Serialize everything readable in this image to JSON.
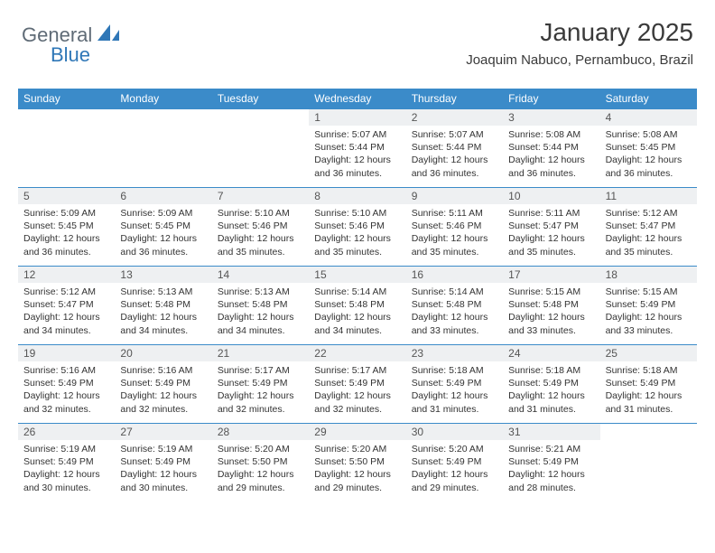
{
  "brand": {
    "part1": "General",
    "part2": "Blue"
  },
  "header": {
    "month_title": "January 2025",
    "location": "Joaquim Nabuco, Pernambuco, Brazil"
  },
  "colors": {
    "header_bg": "#3b8bc9",
    "header_text": "#ffffff",
    "daynum_bg": "#eef0f2",
    "row_sep": "#3b8bc9",
    "logo_gray": "#5f6b76",
    "logo_blue": "#2f77b7",
    "body_text": "#333333"
  },
  "day_names": [
    "Sunday",
    "Monday",
    "Tuesday",
    "Wednesday",
    "Thursday",
    "Friday",
    "Saturday"
  ],
  "weeks": [
    [
      {
        "empty": true
      },
      {
        "empty": true
      },
      {
        "empty": true
      },
      {
        "day": "1",
        "sunrise": "Sunrise: 5:07 AM",
        "sunset": "Sunset: 5:44 PM",
        "daylight1": "Daylight: 12 hours",
        "daylight2": "and 36 minutes."
      },
      {
        "day": "2",
        "sunrise": "Sunrise: 5:07 AM",
        "sunset": "Sunset: 5:44 PM",
        "daylight1": "Daylight: 12 hours",
        "daylight2": "and 36 minutes."
      },
      {
        "day": "3",
        "sunrise": "Sunrise: 5:08 AM",
        "sunset": "Sunset: 5:44 PM",
        "daylight1": "Daylight: 12 hours",
        "daylight2": "and 36 minutes."
      },
      {
        "day": "4",
        "sunrise": "Sunrise: 5:08 AM",
        "sunset": "Sunset: 5:45 PM",
        "daylight1": "Daylight: 12 hours",
        "daylight2": "and 36 minutes."
      }
    ],
    [
      {
        "day": "5",
        "sunrise": "Sunrise: 5:09 AM",
        "sunset": "Sunset: 5:45 PM",
        "daylight1": "Daylight: 12 hours",
        "daylight2": "and 36 minutes."
      },
      {
        "day": "6",
        "sunrise": "Sunrise: 5:09 AM",
        "sunset": "Sunset: 5:45 PM",
        "daylight1": "Daylight: 12 hours",
        "daylight2": "and 36 minutes."
      },
      {
        "day": "7",
        "sunrise": "Sunrise: 5:10 AM",
        "sunset": "Sunset: 5:46 PM",
        "daylight1": "Daylight: 12 hours",
        "daylight2": "and 35 minutes."
      },
      {
        "day": "8",
        "sunrise": "Sunrise: 5:10 AM",
        "sunset": "Sunset: 5:46 PM",
        "daylight1": "Daylight: 12 hours",
        "daylight2": "and 35 minutes."
      },
      {
        "day": "9",
        "sunrise": "Sunrise: 5:11 AM",
        "sunset": "Sunset: 5:46 PM",
        "daylight1": "Daylight: 12 hours",
        "daylight2": "and 35 minutes."
      },
      {
        "day": "10",
        "sunrise": "Sunrise: 5:11 AM",
        "sunset": "Sunset: 5:47 PM",
        "daylight1": "Daylight: 12 hours",
        "daylight2": "and 35 minutes."
      },
      {
        "day": "11",
        "sunrise": "Sunrise: 5:12 AM",
        "sunset": "Sunset: 5:47 PM",
        "daylight1": "Daylight: 12 hours",
        "daylight2": "and 35 minutes."
      }
    ],
    [
      {
        "day": "12",
        "sunrise": "Sunrise: 5:12 AM",
        "sunset": "Sunset: 5:47 PM",
        "daylight1": "Daylight: 12 hours",
        "daylight2": "and 34 minutes."
      },
      {
        "day": "13",
        "sunrise": "Sunrise: 5:13 AM",
        "sunset": "Sunset: 5:48 PM",
        "daylight1": "Daylight: 12 hours",
        "daylight2": "and 34 minutes."
      },
      {
        "day": "14",
        "sunrise": "Sunrise: 5:13 AM",
        "sunset": "Sunset: 5:48 PM",
        "daylight1": "Daylight: 12 hours",
        "daylight2": "and 34 minutes."
      },
      {
        "day": "15",
        "sunrise": "Sunrise: 5:14 AM",
        "sunset": "Sunset: 5:48 PM",
        "daylight1": "Daylight: 12 hours",
        "daylight2": "and 34 minutes."
      },
      {
        "day": "16",
        "sunrise": "Sunrise: 5:14 AM",
        "sunset": "Sunset: 5:48 PM",
        "daylight1": "Daylight: 12 hours",
        "daylight2": "and 33 minutes."
      },
      {
        "day": "17",
        "sunrise": "Sunrise: 5:15 AM",
        "sunset": "Sunset: 5:48 PM",
        "daylight1": "Daylight: 12 hours",
        "daylight2": "and 33 minutes."
      },
      {
        "day": "18",
        "sunrise": "Sunrise: 5:15 AM",
        "sunset": "Sunset: 5:49 PM",
        "daylight1": "Daylight: 12 hours",
        "daylight2": "and 33 minutes."
      }
    ],
    [
      {
        "day": "19",
        "sunrise": "Sunrise: 5:16 AM",
        "sunset": "Sunset: 5:49 PM",
        "daylight1": "Daylight: 12 hours",
        "daylight2": "and 32 minutes."
      },
      {
        "day": "20",
        "sunrise": "Sunrise: 5:16 AM",
        "sunset": "Sunset: 5:49 PM",
        "daylight1": "Daylight: 12 hours",
        "daylight2": "and 32 minutes."
      },
      {
        "day": "21",
        "sunrise": "Sunrise: 5:17 AM",
        "sunset": "Sunset: 5:49 PM",
        "daylight1": "Daylight: 12 hours",
        "daylight2": "and 32 minutes."
      },
      {
        "day": "22",
        "sunrise": "Sunrise: 5:17 AM",
        "sunset": "Sunset: 5:49 PM",
        "daylight1": "Daylight: 12 hours",
        "daylight2": "and 32 minutes."
      },
      {
        "day": "23",
        "sunrise": "Sunrise: 5:18 AM",
        "sunset": "Sunset: 5:49 PM",
        "daylight1": "Daylight: 12 hours",
        "daylight2": "and 31 minutes."
      },
      {
        "day": "24",
        "sunrise": "Sunrise: 5:18 AM",
        "sunset": "Sunset: 5:49 PM",
        "daylight1": "Daylight: 12 hours",
        "daylight2": "and 31 minutes."
      },
      {
        "day": "25",
        "sunrise": "Sunrise: 5:18 AM",
        "sunset": "Sunset: 5:49 PM",
        "daylight1": "Daylight: 12 hours",
        "daylight2": "and 31 minutes."
      }
    ],
    [
      {
        "day": "26",
        "sunrise": "Sunrise: 5:19 AM",
        "sunset": "Sunset: 5:49 PM",
        "daylight1": "Daylight: 12 hours",
        "daylight2": "and 30 minutes."
      },
      {
        "day": "27",
        "sunrise": "Sunrise: 5:19 AM",
        "sunset": "Sunset: 5:49 PM",
        "daylight1": "Daylight: 12 hours",
        "daylight2": "and 30 minutes."
      },
      {
        "day": "28",
        "sunrise": "Sunrise: 5:20 AM",
        "sunset": "Sunset: 5:50 PM",
        "daylight1": "Daylight: 12 hours",
        "daylight2": "and 29 minutes."
      },
      {
        "day": "29",
        "sunrise": "Sunrise: 5:20 AM",
        "sunset": "Sunset: 5:50 PM",
        "daylight1": "Daylight: 12 hours",
        "daylight2": "and 29 minutes."
      },
      {
        "day": "30",
        "sunrise": "Sunrise: 5:20 AM",
        "sunset": "Sunset: 5:49 PM",
        "daylight1": "Daylight: 12 hours",
        "daylight2": "and 29 minutes."
      },
      {
        "day": "31",
        "sunrise": "Sunrise: 5:21 AM",
        "sunset": "Sunset: 5:49 PM",
        "daylight1": "Daylight: 12 hours",
        "daylight2": "and 28 minutes."
      },
      {
        "empty": true
      }
    ]
  ]
}
